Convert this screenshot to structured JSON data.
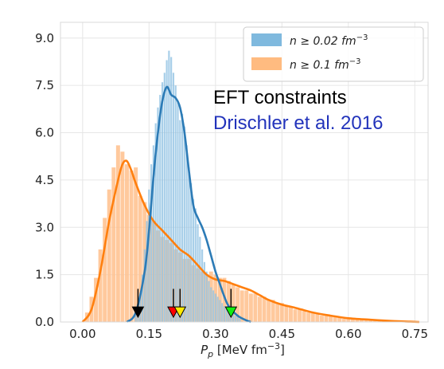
{
  "chart_data": {
    "type": "bar",
    "xlabel_base": "P",
    "xlabel_sub": "p",
    "xlabel_unit_pre": " [MeV fm",
    "xlabel_unit_exp": "−3",
    "xlabel_unit_post": "]",
    "xlim": [
      -0.05,
      0.78
    ],
    "ylim": [
      0.0,
      9.5
    ],
    "xticks": [
      "0.00",
      "0.15",
      "0.30",
      "0.45",
      "0.60",
      "0.75"
    ],
    "xtick_values": [
      0.0,
      0.15,
      0.3,
      0.45,
      0.6,
      0.75
    ],
    "yticks": [
      "0.0",
      "1.5",
      "3.0",
      "4.5",
      "6.0",
      "7.5",
      "9.0"
    ],
    "ytick_values": [
      0.0,
      1.5,
      3.0,
      4.5,
      6.0,
      7.5,
      9.0
    ],
    "grid": true,
    "legend_position": "top-right",
    "legend": [
      {
        "key": "low",
        "label_pre": "n ≥ 0.02 fm",
        "label_exp": "−3",
        "color": "#7fb9de"
      },
      {
        "key": "high",
        "label_pre": "n ≥ 0.1 fm",
        "label_exp": "−3",
        "color": "#ffbb80"
      }
    ],
    "annotation": {
      "line1": "EFT constraints",
      "line2": "Drischler et al. 2016",
      "line1_color": "#000000",
      "line2_color": "#2233bb"
    },
    "series": [
      {
        "name": "n ≥ 0.02 fm⁻³",
        "color_bar": "#92c3e3",
        "color_line": "#2c7bb6",
        "bin_width": 0.005,
        "bins_x": [
          0.12,
          0.125,
          0.13,
          0.135,
          0.14,
          0.145,
          0.15,
          0.155,
          0.16,
          0.165,
          0.17,
          0.175,
          0.18,
          0.185,
          0.19,
          0.195,
          0.2,
          0.205,
          0.21,
          0.215,
          0.22,
          0.225,
          0.23,
          0.235,
          0.24,
          0.245,
          0.25,
          0.255,
          0.26,
          0.265,
          0.27,
          0.275,
          0.28,
          0.285,
          0.29,
          0.295,
          0.3,
          0.305,
          0.31,
          0.315,
          0.32,
          0.325,
          0.33,
          0.335,
          0.34,
          0.345,
          0.35,
          0.355
        ],
        "bins_y": [
          0.2,
          0.5,
          0.9,
          1.5,
          2.3,
          3.2,
          4.2,
          5.0,
          5.6,
          6.3,
          6.8,
          7.2,
          7.6,
          7.9,
          8.3,
          8.6,
          8.4,
          7.9,
          7.5,
          7.0,
          6.4,
          6.6,
          6.2,
          5.6,
          4.9,
          4.4,
          3.9,
          3.6,
          3.1,
          2.7,
          2.3,
          1.9,
          1.6,
          1.3,
          1.1,
          1.0,
          0.9,
          0.8,
          0.7,
          0.6,
          0.5,
          0.5,
          0.4,
          0.3,
          0.3,
          0.2,
          0.2,
          0.1
        ],
        "curve_x": [
          0.1,
          0.12,
          0.14,
          0.15,
          0.16,
          0.17,
          0.18,
          0.19,
          0.2,
          0.21,
          0.22,
          0.23,
          0.24,
          0.25,
          0.26,
          0.27,
          0.28,
          0.29,
          0.3,
          0.31,
          0.32,
          0.33,
          0.35,
          0.37,
          0.38
        ],
        "curve_y": [
          0.0,
          0.3,
          1.6,
          2.9,
          4.6,
          6.0,
          7.0,
          7.45,
          7.2,
          7.1,
          6.8,
          6.0,
          4.8,
          3.7,
          3.3,
          3.0,
          2.6,
          2.1,
          1.6,
          1.2,
          0.8,
          0.5,
          0.2,
          0.05,
          0.0
        ]
      },
      {
        "name": "n ≥ 0.1 fm⁻³",
        "color_bar": "#ffc08c",
        "color_line": "#ff7f0e",
        "bin_width": 0.01,
        "bins_x": [
          0.01,
          0.02,
          0.03,
          0.04,
          0.05,
          0.06,
          0.07,
          0.08,
          0.09,
          0.1,
          0.11,
          0.12,
          0.13,
          0.14,
          0.15,
          0.16,
          0.17,
          0.18,
          0.19,
          0.2,
          0.21,
          0.22,
          0.23,
          0.24,
          0.25,
          0.26,
          0.27,
          0.28,
          0.29,
          0.3,
          0.31,
          0.32,
          0.33,
          0.34,
          0.35,
          0.36,
          0.37,
          0.38,
          0.39,
          0.4,
          0.41,
          0.42,
          0.43,
          0.44,
          0.45,
          0.46,
          0.47,
          0.48,
          0.49,
          0.5,
          0.51,
          0.52,
          0.53,
          0.54,
          0.55,
          0.56,
          0.57,
          0.58,
          0.59,
          0.6,
          0.61,
          0.62,
          0.63,
          0.64,
          0.65,
          0.66,
          0.67,
          0.68,
          0.69,
          0.7,
          0.71,
          0.72,
          0.73,
          0.74,
          0.75,
          0.76
        ],
        "bins_y": [
          0.3,
          0.8,
          1.4,
          2.3,
          3.3,
          4.2,
          4.9,
          5.6,
          5.4,
          5.0,
          4.8,
          4.9,
          4.0,
          3.8,
          3.4,
          3.2,
          2.9,
          2.7,
          2.6,
          2.5,
          2.3,
          2.2,
          2.0,
          2.0,
          1.8,
          1.7,
          1.6,
          1.5,
          1.6,
          1.5,
          1.4,
          1.4,
          1.3,
          1.2,
          1.1,
          1.0,
          1.0,
          0.9,
          0.9,
          0.8,
          0.8,
          0.7,
          0.7,
          0.6,
          0.6,
          0.5,
          0.5,
          0.4,
          0.4,
          0.35,
          0.3,
          0.3,
          0.25,
          0.2,
          0.2,
          0.2,
          0.15,
          0.15,
          0.1,
          0.1,
          0.1,
          0.08,
          0.07,
          0.06,
          0.05,
          0.05,
          0.04,
          0.03,
          0.03,
          0.02,
          0.02,
          0.02,
          0.01,
          0.01,
          0.01,
          0.01
        ],
        "curve_x": [
          0.0,
          0.02,
          0.04,
          0.06,
          0.08,
          0.09,
          0.1,
          0.11,
          0.12,
          0.14,
          0.16,
          0.18,
          0.2,
          0.22,
          0.24,
          0.26,
          0.28,
          0.3,
          0.32,
          0.34,
          0.36,
          0.38,
          0.4,
          0.42,
          0.45,
          0.48,
          0.52,
          0.56,
          0.6,
          0.65,
          0.7,
          0.74,
          0.76
        ],
        "curve_y": [
          0.0,
          0.4,
          1.6,
          3.2,
          4.5,
          5.0,
          5.1,
          4.8,
          4.4,
          3.7,
          3.2,
          2.9,
          2.6,
          2.3,
          2.1,
          1.8,
          1.5,
          1.35,
          1.3,
          1.2,
          1.1,
          1.0,
          0.85,
          0.7,
          0.55,
          0.45,
          0.3,
          0.2,
          0.12,
          0.07,
          0.03,
          0.01,
          0.0
        ]
      }
    ],
    "markers": [
      {
        "x": 0.125,
        "color": "#000000"
      },
      {
        "x": 0.205,
        "color": "#ff0000"
      },
      {
        "x": 0.22,
        "color": "#ffea00"
      },
      {
        "x": 0.335,
        "color": "#11ee11"
      }
    ],
    "marker_base_y": 0.15,
    "marker_stem_top_y": 1.05
  }
}
